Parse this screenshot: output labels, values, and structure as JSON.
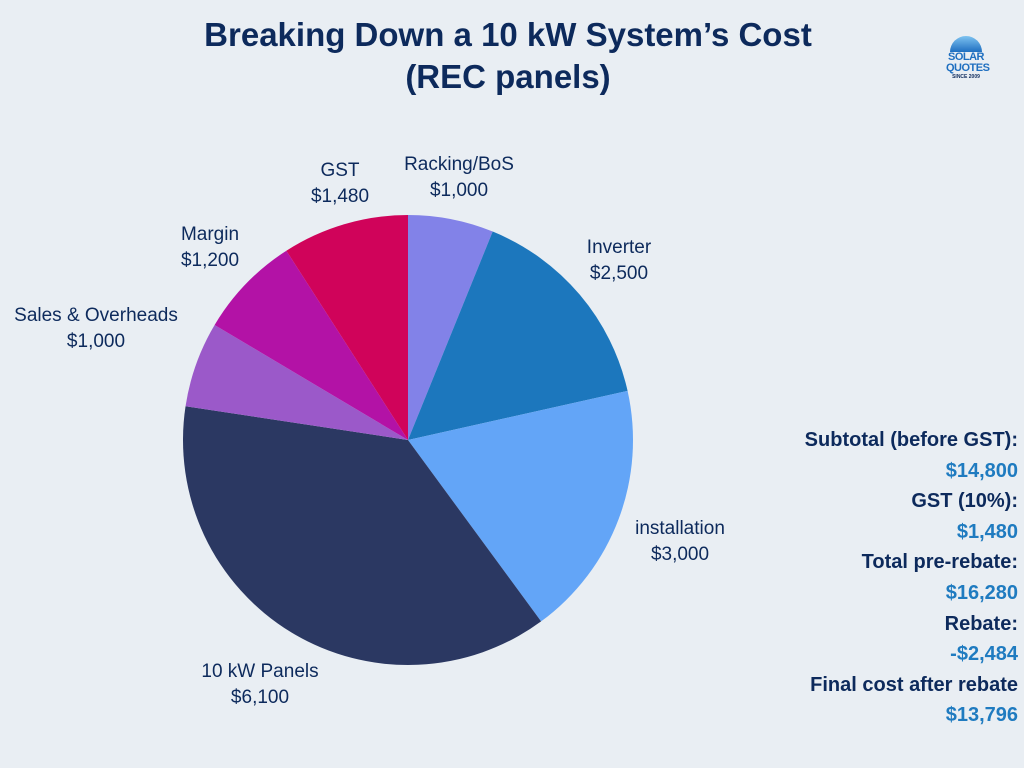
{
  "title_line1": "Breaking Down a 10 kW System’s Cost",
  "title_line2": "(REC panels)",
  "logo": {
    "text": "SOLAR QUOTES",
    "tagline": "SINCE 2009"
  },
  "chart_data": {
    "type": "pie",
    "title": "Breaking Down a 10 kW System’s Cost (REC panels)",
    "start": "12 o'clock, clockwise",
    "slices": [
      {
        "label": "Racking/BoS",
        "value": 1000,
        "value_label": "$1,000",
        "color": "#8282e8"
      },
      {
        "label": "Inverter",
        "value": 2500,
        "value_label": "$2,500",
        "color": "#1c77bd"
      },
      {
        "label": "installation",
        "value": 3000,
        "value_label": "$3,000",
        "color": "#63a5f7"
      },
      {
        "label": "10 kW Panels",
        "value": 6100,
        "value_label": "$6,100",
        "color": "#2b3862"
      },
      {
        "label": "Sales & Overheads",
        "value": 1000,
        "value_label": "$1,000",
        "color": "#9b59c9"
      },
      {
        "label": "Margin",
        "value": 1200,
        "value_label": "$1,200",
        "color": "#b312a6"
      },
      {
        "label": "GST",
        "value": 1480,
        "value_label": "$1,480",
        "color": "#d0035a"
      }
    ]
  },
  "summary": [
    {
      "label": "Subtotal (before GST):",
      "value": "$14,800"
    },
    {
      "label": "GST (10%):",
      "value": "$1,480"
    },
    {
      "label": "Total pre-rebate:",
      "value": "$16,280"
    },
    {
      "label": "Rebate:",
      "value": "-$2,484"
    },
    {
      "label": "Final cost after rebate",
      "value": "$13,796"
    }
  ]
}
